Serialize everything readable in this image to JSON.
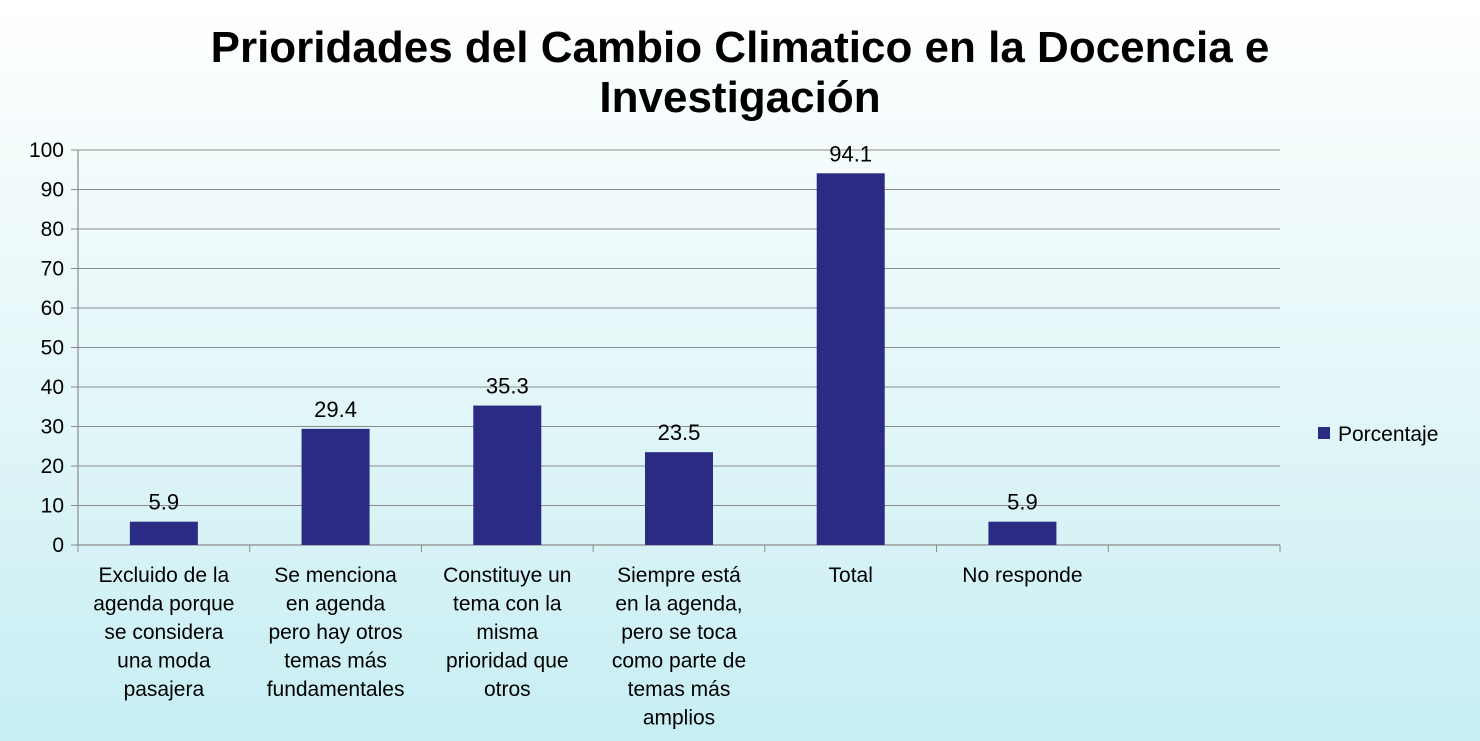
{
  "chart_data": {
    "type": "bar",
    "title": "Prioridades del Cambio Climatico en la Docencia e Investigación",
    "title_lines": [
      "Prioridades del Cambio Climatico en la Docencia e",
      "Investigación"
    ],
    "categories": [
      [
        "Excluido de la",
        "agenda porque",
        "se considera",
        "una moda",
        "pasajera"
      ],
      [
        "Se menciona",
        "en agenda",
        "pero hay otros",
        "temas más",
        "fundamentales"
      ],
      [
        "Constituye un",
        "tema con la",
        "misma",
        "prioridad que",
        "otros"
      ],
      [
        "Siempre está",
        "en la agenda,",
        "pero se toca",
        "como parte de",
        "temas más",
        "amplios"
      ],
      [
        "Total"
      ],
      [
        "No responde"
      ],
      []
    ],
    "series": [
      {
        "name": "Porcentaje",
        "values": [
          5.9,
          29.4,
          35.3,
          23.5,
          94.1,
          5.9,
          null
        ]
      }
    ],
    "data_labels": [
      "5.9",
      "29.4",
      "35.3",
      "23.5",
      "94.1",
      "5.9"
    ],
    "yticks": [
      0,
      10,
      20,
      30,
      40,
      50,
      60,
      70,
      80,
      90,
      100
    ],
    "ylim": [
      0,
      100
    ],
    "xlabel": "",
    "ylabel": "",
    "grid": true,
    "legend": "right",
    "colors": {
      "bar": "#2b2b84",
      "grid": "#8c8c8c",
      "axis": "#8c8c8c"
    }
  }
}
